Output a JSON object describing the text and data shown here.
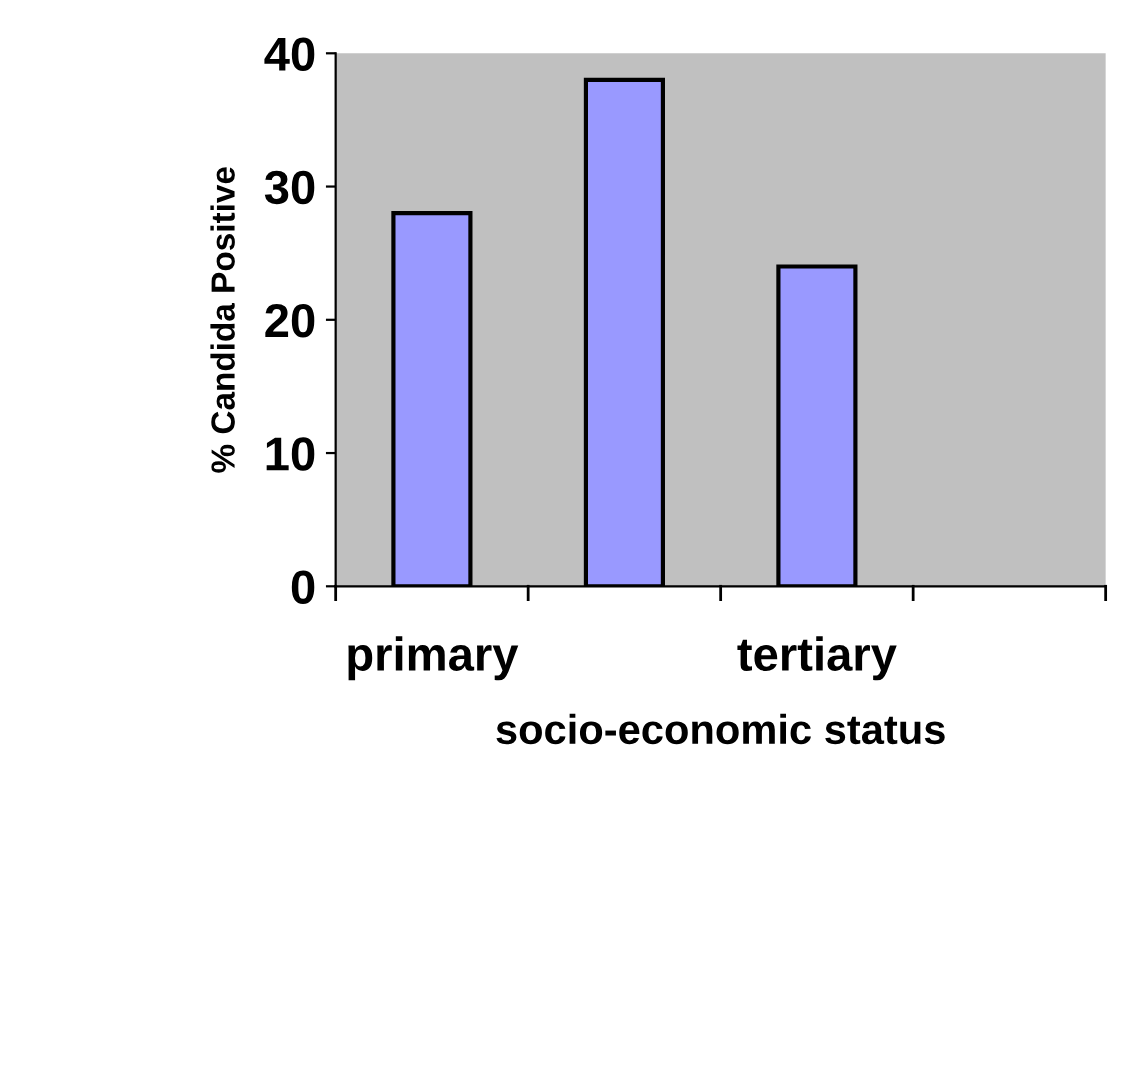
{
  "chart_data": {
    "type": "bar",
    "categories": [
      "primary",
      null,
      "tertiary",
      null
    ],
    "values": [
      28,
      38,
      24,
      null
    ],
    "color": "#9999ff",
    "xlabel": "socio-economic status",
    "ylabel": "% Candida Positive",
    "ylim": [
      0,
      40
    ],
    "yticks": [
      0,
      10,
      20,
      30,
      40
    ],
    "grid": false,
    "legend": false
  }
}
